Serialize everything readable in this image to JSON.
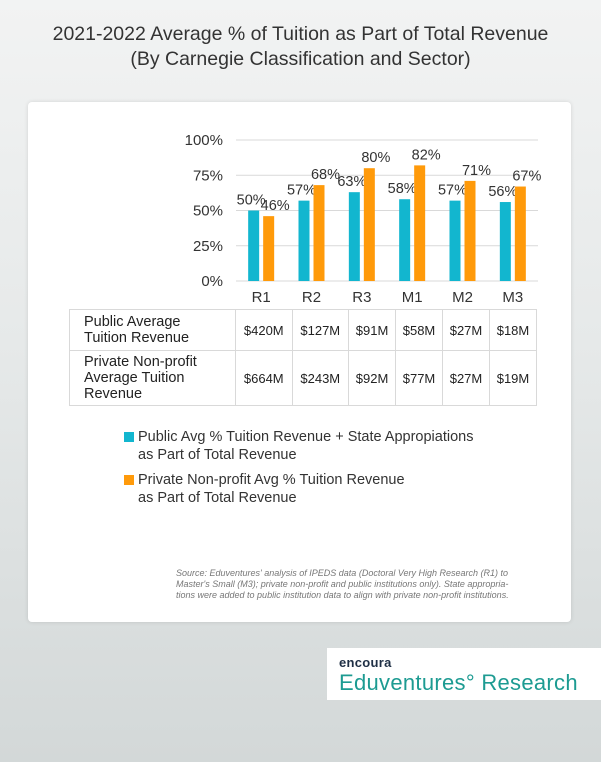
{
  "title_line1": "2021-2022 Average % of Tuition as Part of Total Revenue",
  "title_line2": "(By Carnegie Classification and Sector)",
  "colors": {
    "public": "#12b6cf",
    "private": "#ff9a0a",
    "grid": "#d9d9d9",
    "text": "#333333"
  },
  "chart_data": {
    "type": "bar",
    "title": "2021-2022 Average % of Tuition as Part of Total Revenue",
    "categories": [
      "R1",
      "R2",
      "R3",
      "M1",
      "M2",
      "M3"
    ],
    "series": [
      {
        "name": "Public Avg % Tuition Revenue + State Appropiations as Part of Total Revenue",
        "values": [
          50,
          57,
          63,
          58,
          57,
          56
        ],
        "labels": [
          "50%",
          "57%",
          "63%",
          "58%",
          "57%",
          "56%"
        ]
      },
      {
        "name": "Private Non-profit Avg % Tuition Revenue as Part of Total Revenue",
        "values": [
          46,
          68,
          80,
          82,
          71,
          67
        ],
        "labels": [
          "46%",
          "68%",
          "80%",
          "82%",
          "71%",
          "67%"
        ]
      }
    ],
    "yticks": [
      "0%",
      "25%",
      "50%",
      "75%",
      "100%"
    ],
    "ylim": [
      0,
      100
    ],
    "grid": true,
    "legend_position": "bottom"
  },
  "table": {
    "rows": [
      {
        "label_lines": [
          "Public Average",
          "Tuition Revenue"
        ],
        "values": [
          "$420M",
          "$127M",
          "$91M",
          "$58M",
          "$27M",
          "$18M"
        ]
      },
      {
        "label_lines": [
          "Private Non-profit",
          "Average Tuition",
          "Revenue"
        ],
        "values": [
          "$664M",
          "$243M",
          "$92M",
          "$77M",
          "$27M",
          "$19M"
        ]
      }
    ]
  },
  "legend": {
    "public_lines": [
      "Public Avg % Tuition Revenue + State Appropiations",
      "as Part of Total Revenue"
    ],
    "private_lines": [
      "Private Non-profit Avg % Tuition Revenue",
      "as Part of Total Revenue"
    ]
  },
  "source_lines": [
    "Source: Eduventures' analysis of IPEDS data (Doctoral Very High Research (R1) to",
    "Master's Small (M3); private non-profit and public institutions only). State appropria-",
    "tions were added to public institution data to align with private non-profit institutions."
  ],
  "logo": {
    "small": "encoura",
    "big": "Eduventures° Research"
  }
}
